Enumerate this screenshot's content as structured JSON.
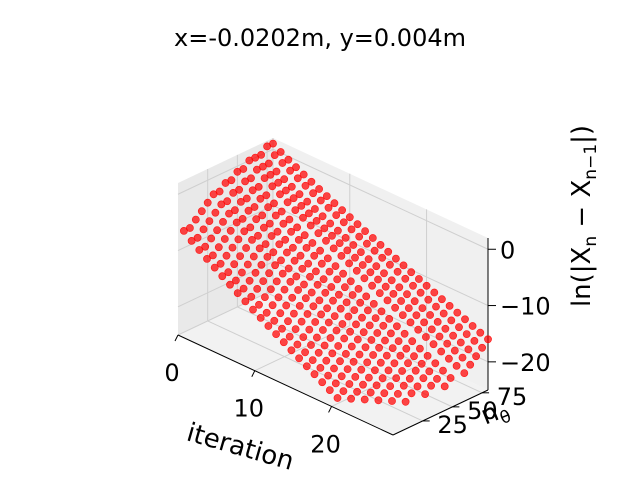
{
  "chart_data": {
    "type": "scatter",
    "title": "x=-0.0202m, y=0.004m",
    "xlabel": "iteration",
    "ylabel": "n",
    "ylabel_sub": "θ",
    "zlabel": "ln(|X",
    "zlabel_sub1": "n",
    "zlabel_mid": " − X",
    "zlabel_sub2": "n−1",
    "zlabel_end": "|)",
    "projection": "3d",
    "xlim": [
      0,
      28
    ],
    "ylim": [
      0,
      80
    ],
    "zlim": [
      -25,
      2
    ],
    "x_ticks": [
      "0",
      "10",
      "20"
    ],
    "y_ticks": [
      "25",
      "50",
      "75"
    ],
    "z_ticks": [
      "0",
      "−10",
      "−20"
    ],
    "grid": true,
    "marker_color": "#ff0000",
    "series": [
      {
        "n_theta": 5,
        "iterations": 20,
        "ln_error_start": -7,
        "ln_error_end": -24
      },
      {
        "n_theta": 10,
        "iterations": 21,
        "ln_error_start": -7,
        "ln_error_end": -24
      },
      {
        "n_theta": 15,
        "iterations": 22,
        "ln_error_start": -6,
        "ln_error_end": -24
      },
      {
        "n_theta": 20,
        "iterations": 23,
        "ln_error_start": -5,
        "ln_error_end": -24
      },
      {
        "n_theta": 25,
        "iterations": 24,
        "ln_error_start": -4,
        "ln_error_end": -24
      },
      {
        "n_theta": 30,
        "iterations": 25,
        "ln_error_start": -3,
        "ln_error_end": -24
      },
      {
        "n_theta": 35,
        "iterations": 25,
        "ln_error_start": -3,
        "ln_error_end": -23
      },
      {
        "n_theta": 40,
        "iterations": 26,
        "ln_error_start": -2,
        "ln_error_end": -23
      },
      {
        "n_theta": 45,
        "iterations": 26,
        "ln_error_start": -2,
        "ln_error_end": -22
      },
      {
        "n_theta": 50,
        "iterations": 27,
        "ln_error_start": -1,
        "ln_error_end": -22
      },
      {
        "n_theta": 55,
        "iterations": 27,
        "ln_error_start": -1,
        "ln_error_end": -21
      },
      {
        "n_theta": 60,
        "iterations": 28,
        "ln_error_start": 0,
        "ln_error_end": -20
      },
      {
        "n_theta": 65,
        "iterations": 28,
        "ln_error_start": 0,
        "ln_error_end": -19
      },
      {
        "n_theta": 70,
        "iterations": 28,
        "ln_error_start": 0,
        "ln_error_end": -18
      },
      {
        "n_theta": 75,
        "iterations": 28,
        "ln_error_start": 1,
        "ln_error_end": -17
      },
      {
        "n_theta": 80,
        "iterations": 28,
        "ln_error_start": 1,
        "ln_error_end": -16
      }
    ]
  }
}
